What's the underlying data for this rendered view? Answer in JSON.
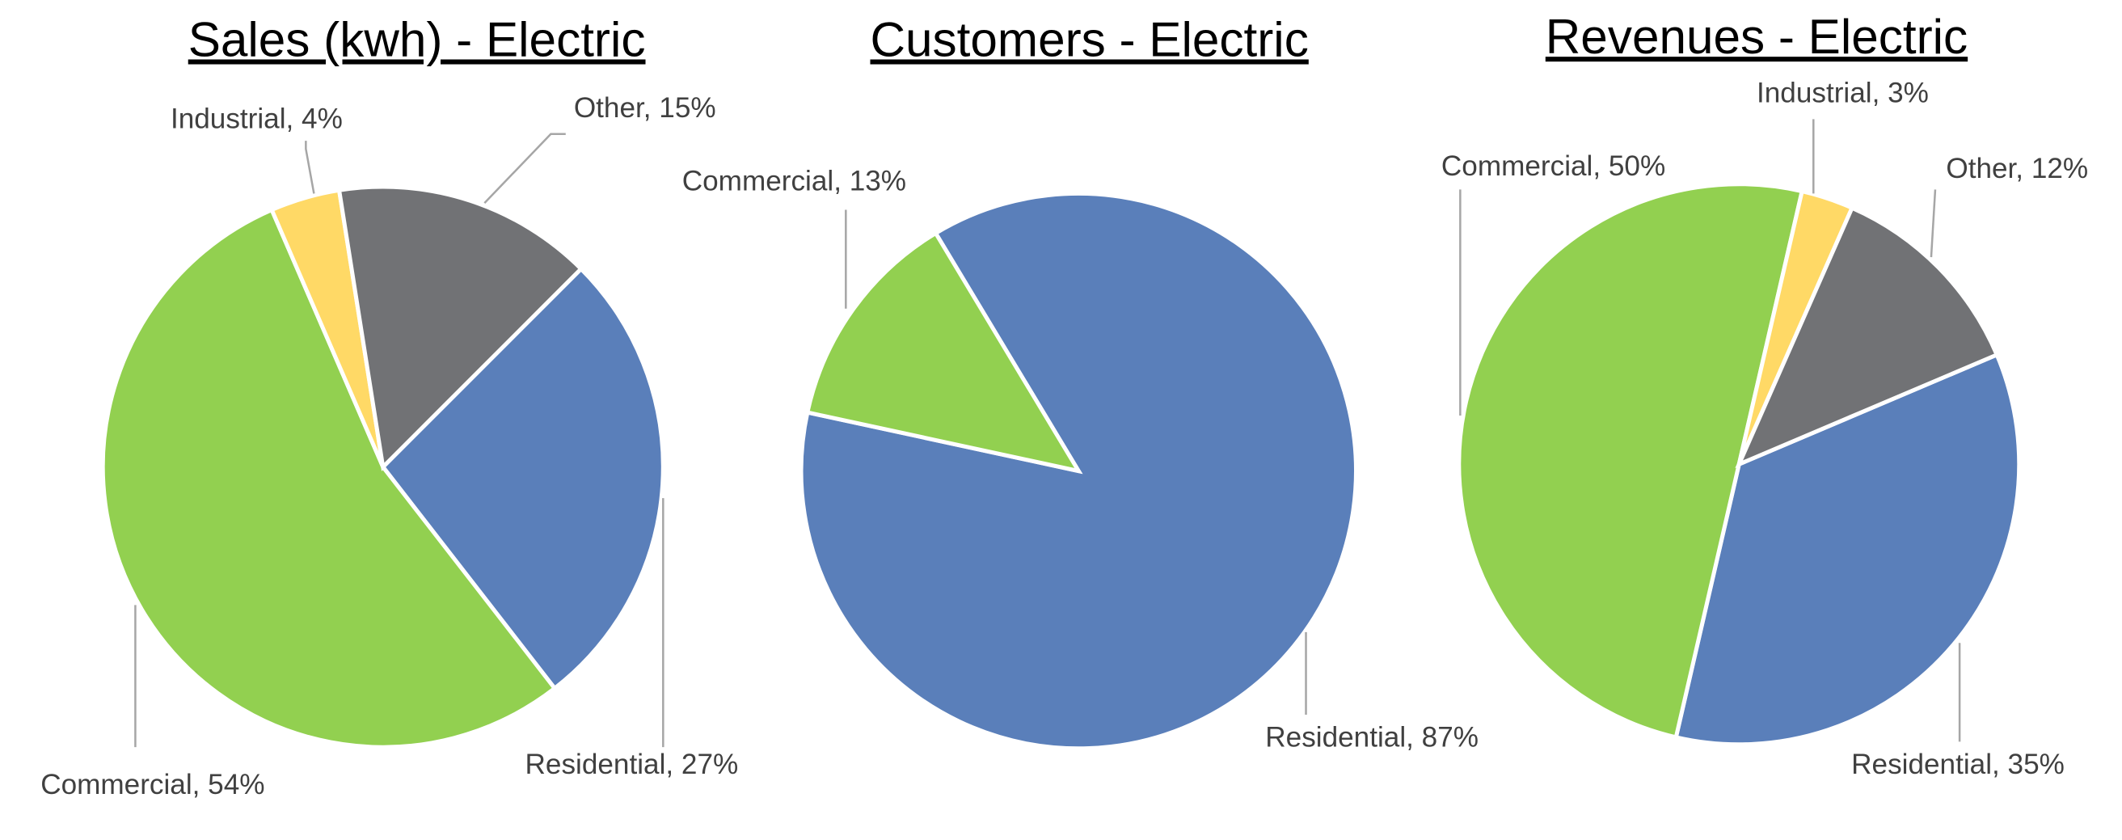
{
  "chart_data": [
    {
      "type": "pie",
      "title": "Sales (kwh) - Electric",
      "values": [
        27,
        54,
        4,
        15
      ],
      "value_labels": [
        "Residential, 27%",
        "Commercial, 54%",
        "Industrial, 4%",
        "Other, 15%"
      ],
      "colors": [
        "#5a7fba",
        "#92d050",
        "#ffd966",
        "#717275"
      ]
    },
    {
      "type": "pie",
      "title": "Customers - Electric",
      "values": [
        87,
        13
      ],
      "value_labels": [
        "Residential, 87%",
        "Commercial, 13%"
      ],
      "colors": [
        "#5a7fba",
        "#92d050"
      ]
    },
    {
      "type": "pie",
      "title": "Revenues - Electric",
      "values": [
        35,
        50,
        3,
        12
      ],
      "value_labels": [
        "Residential, 35%",
        "Commercial, 50%",
        "Industrial, 3%",
        "Other, 12%"
      ],
      "colors": [
        "#5a7fba",
        "#92d050",
        "#ffd966",
        "#717275"
      ]
    }
  ]
}
